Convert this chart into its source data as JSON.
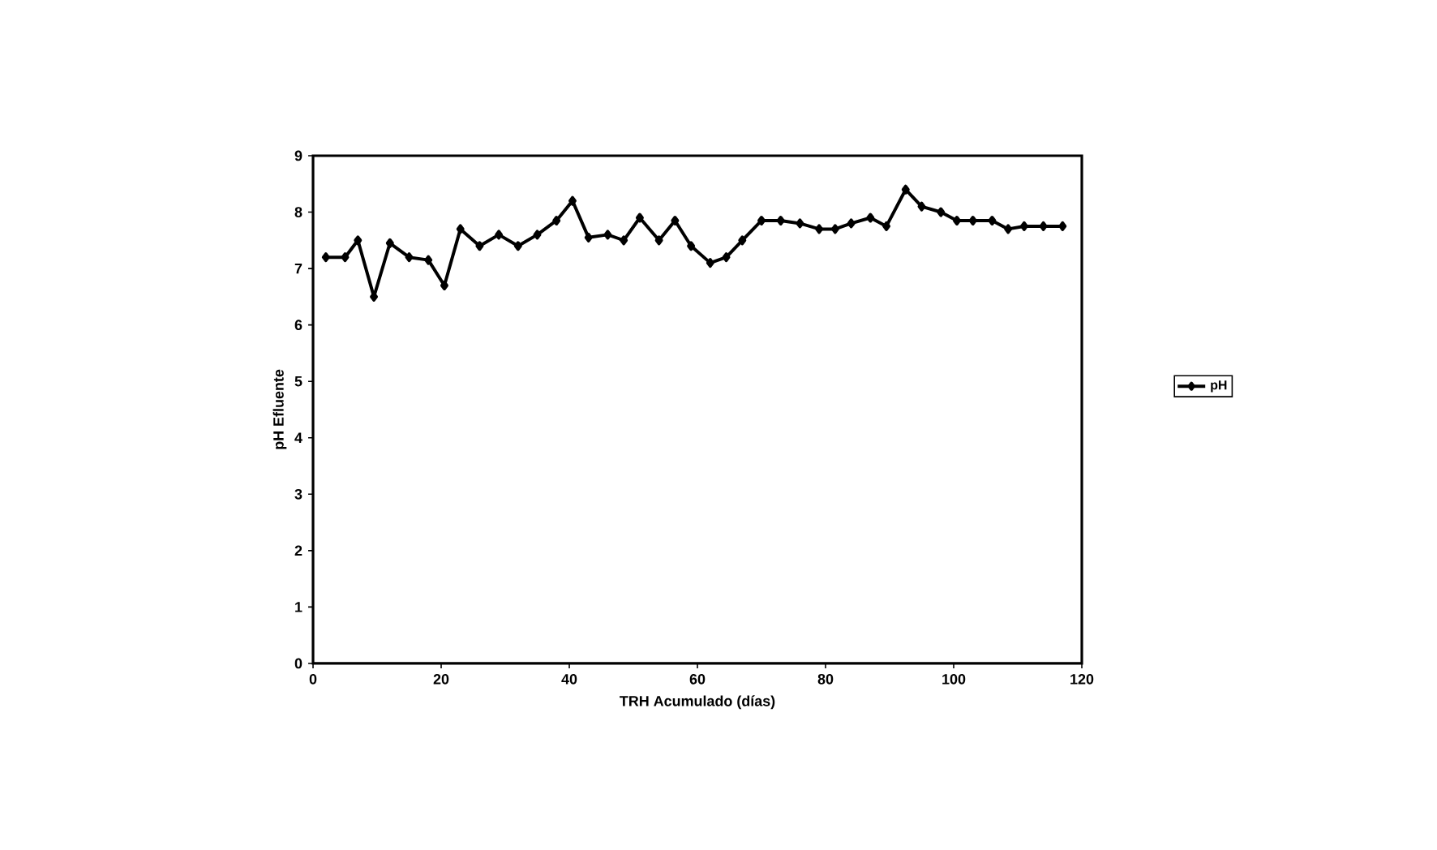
{
  "chart_data": {
    "type": "line",
    "xlabel": "TRH Acumulado (días)",
    "ylabel": "pH Efluente",
    "xlim": [
      0,
      120
    ],
    "xticks": [
      0,
      20,
      40,
      60,
      80,
      100,
      120
    ],
    "ylim": [
      0,
      9
    ],
    "yticks": [
      0,
      1,
      2,
      3,
      4,
      5,
      6,
      7,
      8,
      9
    ],
    "x": [
      2,
      5,
      7,
      9.5,
      12,
      15,
      18,
      20.5,
      23,
      26,
      29,
      32,
      35,
      38,
      40.5,
      43,
      46,
      48.5,
      51,
      54,
      56.5,
      59,
      62,
      64.5,
      67,
      70,
      73,
      76,
      79,
      81.5,
      84,
      87,
      89.5,
      92.5,
      95,
      98,
      100.5,
      103,
      106,
      108.5,
      111,
      114,
      117
    ],
    "series": [
      {
        "name": "pH",
        "color": "#000000",
        "values": [
          7.2,
          7.2,
          7.5,
          6.5,
          7.45,
          7.2,
          7.15,
          6.7,
          7.7,
          7.4,
          7.6,
          7.4,
          7.6,
          7.85,
          8.2,
          7.55,
          7.6,
          7.5,
          7.9,
          7.5,
          7.85,
          7.4,
          7.1,
          7.2,
          7.5,
          7.85,
          7.85,
          7.8,
          7.7,
          7.7,
          7.8,
          7.9,
          7.75,
          8.4,
          8.1,
          8.0,
          7.85,
          7.85,
          7.85,
          7.7,
          7.75,
          7.75,
          7.75
        ]
      }
    ],
    "legend": "right",
    "marker": "diamond",
    "line_style": "solid",
    "grid": false
  }
}
